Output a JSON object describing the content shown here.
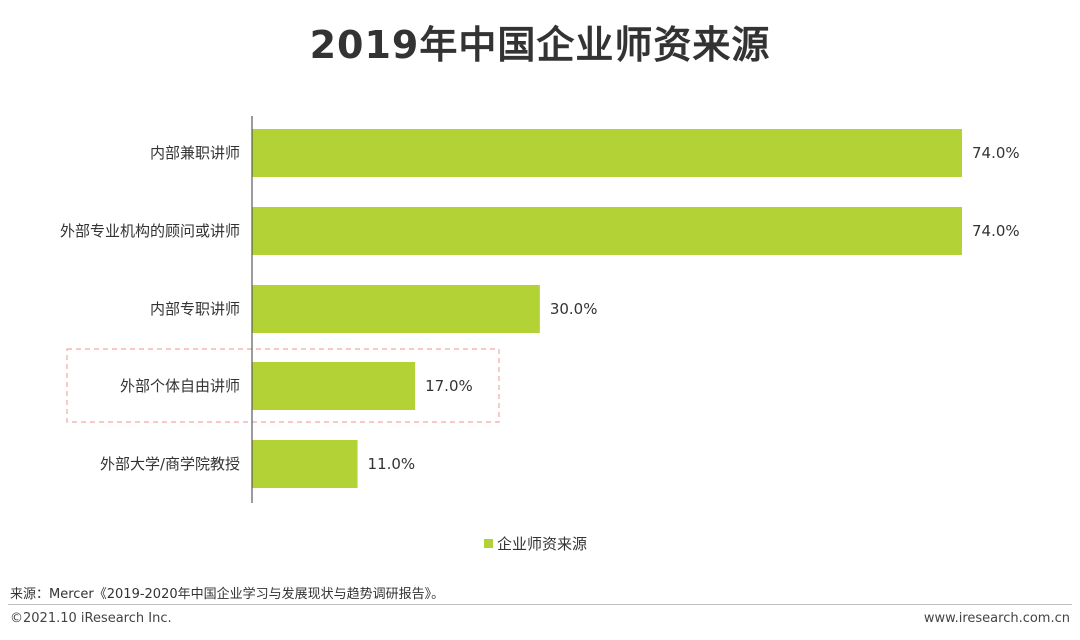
{
  "page": {
    "title": "2019年中国企业师资来源",
    "source": "来源：Mercer《2019-2020年中国企业学习与发展现状与趋势调研报告》。",
    "copyright": "©2021.10 iResearch Inc.",
    "website": "www.iresearch.com.cn"
  },
  "chart_data": {
    "type": "bar",
    "orientation": "horizontal",
    "title": "2019年中国企业师资来源",
    "categories": [
      "内部兼职讲师",
      "外部专业机构的顾问或讲师",
      "内部专职讲师",
      "外部个体自由讲师",
      "外部大学/商学院教授"
    ],
    "series": [
      {
        "name": "企业师资来源",
        "values": [
          74.0,
          74.0,
          30.0,
          17.0,
          11.0
        ],
        "color": "#b2d235"
      }
    ],
    "value_labels": [
      "74.0%",
      "74.0%",
      "30.0%",
      "17.0%",
      "11.0%"
    ],
    "xlim": [
      0,
      100
    ],
    "grid": false,
    "legend_position": "bottom",
    "highlighted_category": "外部个体自由讲师",
    "highlight_color": "#f4a6a6"
  }
}
